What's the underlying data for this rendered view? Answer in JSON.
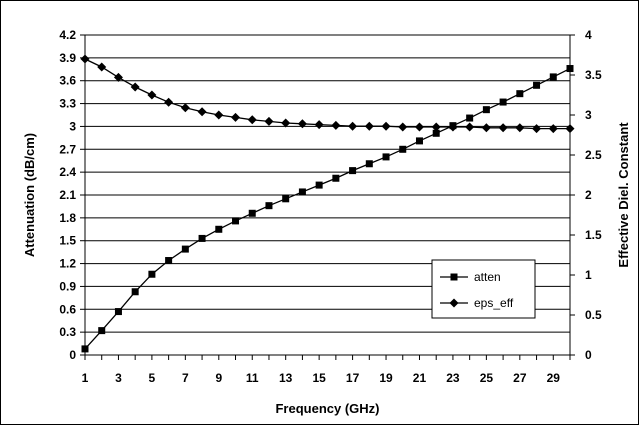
{
  "chart_data": {
    "type": "line",
    "title": "",
    "xlabel": "Frequency (GHz)",
    "ylabel_left": "Attenuation (dB/cm)",
    "ylabel_right": "Effective Diel. Constant",
    "xlim": [
      1,
      30
    ],
    "ylim_left": [
      0,
      4.2
    ],
    "ylim_right": [
      0,
      4
    ],
    "x_tick_labels": [
      "1",
      "3",
      "5",
      "7",
      "9",
      "11",
      "13",
      "15",
      "17",
      "19",
      "21",
      "23",
      "25",
      "27",
      "29"
    ],
    "y_left_tick_labels": [
      "0",
      "0.3",
      "0.6",
      "0.9",
      "1.2",
      "1.5",
      "1.8",
      "2.1",
      "2.4",
      "2.7",
      "3",
      "3.3",
      "3.6",
      "3.9",
      "4.2"
    ],
    "y_right_tick_labels": [
      "0",
      "0.5",
      "1",
      "1.5",
      "2",
      "2.5",
      "3",
      "3.5",
      "4"
    ],
    "grid": true,
    "legend_position": "bottom-right",
    "x": [
      1,
      2,
      3,
      4,
      5,
      6,
      7,
      8,
      9,
      10,
      11,
      12,
      13,
      14,
      15,
      16,
      17,
      18,
      19,
      20,
      21,
      22,
      23,
      24,
      25,
      26,
      27,
      28,
      29,
      30
    ],
    "series": [
      {
        "name": "atten",
        "axis": "left",
        "marker": "square",
        "color": "#000000",
        "values": [
          0.08,
          0.32,
          0.57,
          0.83,
          1.06,
          1.24,
          1.39,
          1.53,
          1.65,
          1.76,
          1.86,
          1.96,
          2.05,
          2.14,
          2.23,
          2.32,
          2.42,
          2.51,
          2.6,
          2.7,
          2.81,
          2.91,
          3.01,
          3.11,
          3.22,
          3.32,
          3.43,
          3.54,
          3.65,
          3.76
        ]
      },
      {
        "name": "eps_eff",
        "axis": "right",
        "marker": "diamond",
        "color": "#000000",
        "values": [
          3.7,
          3.6,
          3.47,
          3.35,
          3.25,
          3.16,
          3.09,
          3.04,
          3.0,
          2.97,
          2.94,
          2.92,
          2.9,
          2.89,
          2.88,
          2.87,
          2.86,
          2.86,
          2.86,
          2.85,
          2.85,
          2.85,
          2.85,
          2.85,
          2.84,
          2.84,
          2.84,
          2.83,
          2.83,
          2.83
        ]
      }
    ]
  }
}
